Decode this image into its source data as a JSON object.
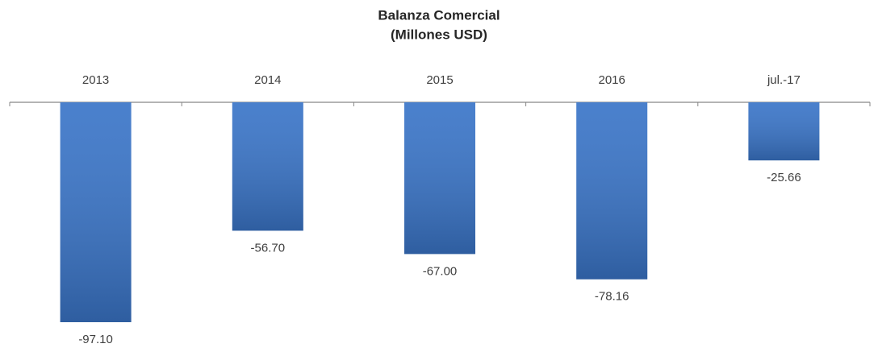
{
  "chart_data": {
    "type": "bar",
    "title": "Balanza Comercial",
    "subtitle": "(Millones USD)",
    "categories": [
      "2013",
      "2014",
      "2015",
      "2016",
      "jul.-17"
    ],
    "values": [
      -97.1,
      -56.7,
      -67.0,
      -78.16,
      -25.66
    ],
    "value_labels": [
      "-97.10",
      "-56.70",
      "-67.00",
      "-78.16",
      "-25.66"
    ],
    "color": "#3a75c8"
  }
}
